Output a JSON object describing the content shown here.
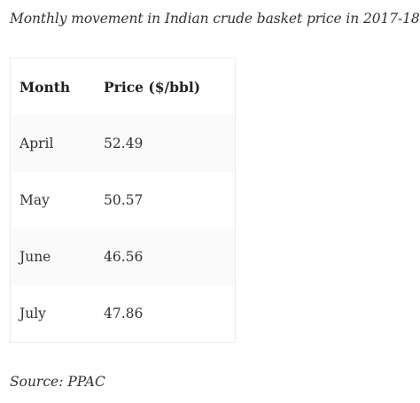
{
  "caption": "Monthly movement in Indian crude basket price in 2017-18",
  "table": {
    "headers": [
      "Month",
      "Price ($/bbl)"
    ],
    "rows": [
      [
        "April",
        "52.49"
      ],
      [
        "May",
        "50.57"
      ],
      [
        "June",
        "46.56"
      ],
      [
        "July",
        "47.86"
      ]
    ]
  },
  "source": "Source: PPAC"
}
